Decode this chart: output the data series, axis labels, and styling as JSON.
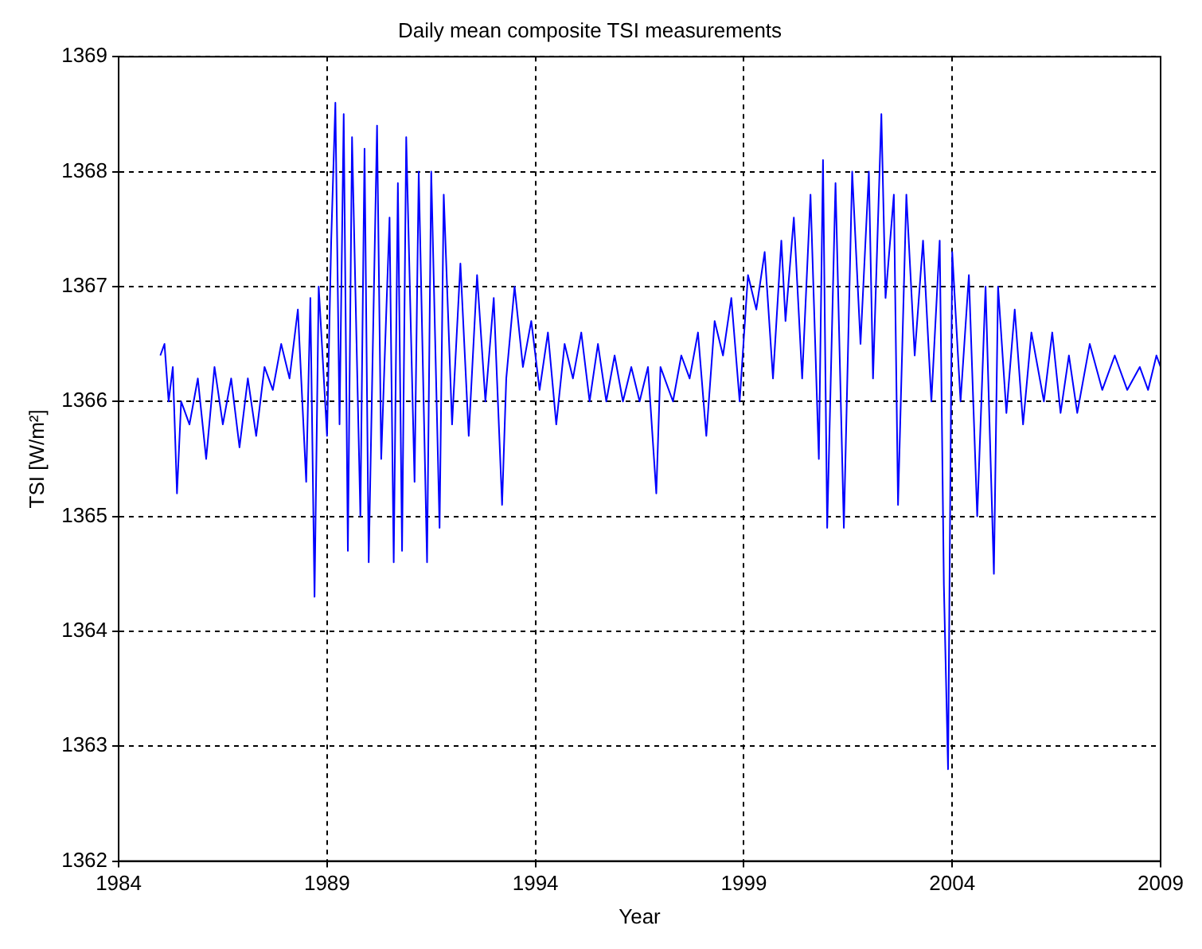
{
  "chart_data": {
    "type": "line",
    "title": "Daily mean composite TSI measurements",
    "xlabel": "Year",
    "ylabel": "TSI [W/m²]",
    "x": [
      1985.0,
      1985.1,
      1985.2,
      1985.3,
      1985.4,
      1985.5,
      1985.7,
      1985.9,
      1986.1,
      1986.3,
      1986.5,
      1986.7,
      1986.9,
      1987.1,
      1987.3,
      1987.5,
      1987.7,
      1987.9,
      1988.1,
      1988.3,
      1988.5,
      1988.6,
      1988.7,
      1988.8,
      1989.0,
      1989.1,
      1989.2,
      1989.3,
      1989.4,
      1989.5,
      1989.6,
      1989.8,
      1989.9,
      1990.0,
      1990.2,
      1990.3,
      1990.5,
      1990.6,
      1990.7,
      1990.8,
      1990.9,
      1991.1,
      1991.2,
      1991.4,
      1991.5,
      1991.7,
      1991.8,
      1992.0,
      1992.2,
      1992.4,
      1992.6,
      1992.8,
      1993.0,
      1993.2,
      1993.3,
      1993.5,
      1993.7,
      1993.9,
      1994.1,
      1994.3,
      1994.5,
      1994.7,
      1994.9,
      1995.1,
      1995.3,
      1995.5,
      1995.7,
      1995.9,
      1996.1,
      1996.3,
      1996.5,
      1996.7,
      1996.9,
      1997.0,
      1997.3,
      1997.5,
      1997.7,
      1997.9,
      1998.1,
      1998.3,
      1998.5,
      1998.7,
      1998.9,
      1999.1,
      1999.3,
      1999.5,
      1999.7,
      1999.9,
      2000.0,
      2000.2,
      2000.4,
      2000.6,
      2000.8,
      2000.9,
      2001.0,
      2001.2,
      2001.4,
      2001.6,
      2001.8,
      2002.0,
      2002.1,
      2002.3,
      2002.4,
      2002.6,
      2002.7,
      2002.9,
      2003.1,
      2003.3,
      2003.5,
      2003.7,
      2003.8,
      2003.9,
      2004.0,
      2004.2,
      2004.4,
      2004.6,
      2004.8,
      2005.0,
      2005.1,
      2005.3,
      2005.5,
      2005.7,
      2005.9,
      2006.2,
      2006.4,
      2006.6,
      2006.8,
      2007.0,
      2007.3,
      2007.6,
      2007.9,
      2008.2,
      2008.5,
      2008.7,
      2008.9,
      2009.0
    ],
    "series": [
      {
        "color": "#0000ff",
        "values": [
          1366.4,
          1366.5,
          1366.0,
          1366.3,
          1365.2,
          1366.0,
          1365.8,
          1366.2,
          1365.5,
          1366.3,
          1365.8,
          1366.2,
          1365.6,
          1366.2,
          1365.7,
          1366.3,
          1366.1,
          1366.5,
          1366.2,
          1366.8,
          1365.3,
          1366.9,
          1364.3,
          1367.0,
          1365.7,
          1367.4,
          1368.6,
          1365.8,
          1368.5,
          1364.7,
          1368.3,
          1365.0,
          1368.2,
          1364.6,
          1368.4,
          1365.5,
          1367.6,
          1364.6,
          1367.9,
          1364.7,
          1368.3,
          1365.3,
          1368.0,
          1364.6,
          1368.0,
          1364.9,
          1367.8,
          1365.8,
          1367.2,
          1365.7,
          1367.1,
          1366.0,
          1366.9,
          1365.1,
          1366.2,
          1367.0,
          1366.3,
          1366.7,
          1366.1,
          1366.6,
          1365.8,
          1366.5,
          1366.2,
          1366.6,
          1366.0,
          1366.5,
          1366.0,
          1366.4,
          1366.0,
          1366.3,
          1366.0,
          1366.3,
          1365.2,
          1366.3,
          1366.0,
          1366.4,
          1366.2,
          1366.6,
          1365.7,
          1366.7,
          1366.4,
          1366.9,
          1366.0,
          1367.1,
          1366.8,
          1367.3,
          1366.2,
          1367.4,
          1366.7,
          1367.6,
          1366.2,
          1367.8,
          1365.5,
          1368.1,
          1364.9,
          1367.9,
          1364.9,
          1368.0,
          1366.5,
          1368.0,
          1366.2,
          1368.5,
          1366.9,
          1367.8,
          1365.1,
          1367.8,
          1366.4,
          1367.4,
          1366.0,
          1367.4,
          1364.4,
          1362.8,
          1367.3,
          1366.0,
          1367.1,
          1365.0,
          1367.0,
          1364.5,
          1367.0,
          1365.9,
          1366.8,
          1365.8,
          1366.6,
          1366.0,
          1366.6,
          1365.9,
          1366.4,
          1365.9,
          1366.5,
          1366.1,
          1366.4,
          1366.1,
          1366.3,
          1366.1,
          1366.4,
          1366.3
        ]
      }
    ],
    "xlim": [
      1984,
      2009
    ],
    "xticks": [
      1984,
      1989,
      1994,
      1999,
      2004,
      2009
    ],
    "ylim": [
      1362,
      1369
    ],
    "yticks": [
      1362,
      1363,
      1364,
      1365,
      1366,
      1367,
      1368,
      1369
    ],
    "grid": true,
    "legend": false,
    "marker": "none",
    "line_style": "solid"
  }
}
